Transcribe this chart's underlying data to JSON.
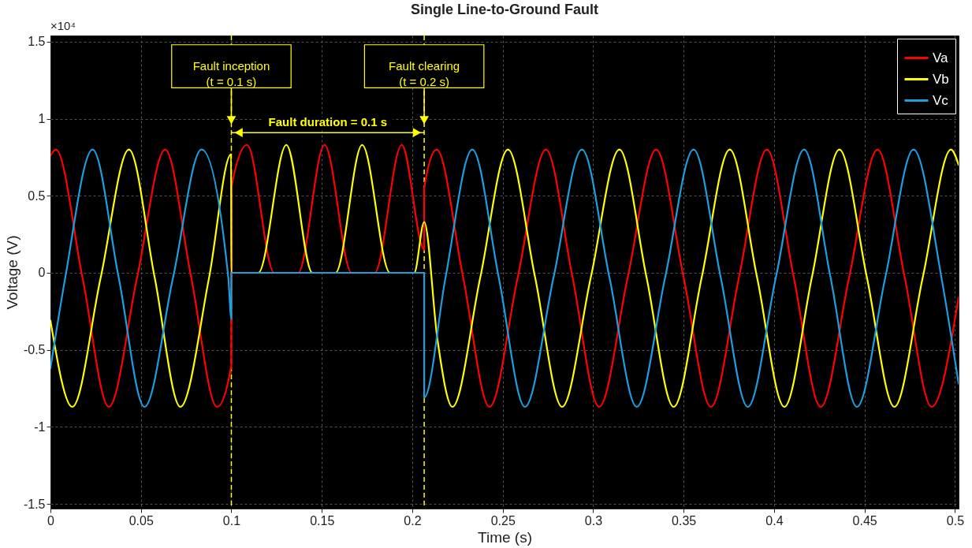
{
  "chart_data": {
    "type": "line",
    "title": "Single Line-to-Ground Fault",
    "xlabel": "Time (s)",
    "ylabel": "Voltage (V)",
    "xlim": [
      0,
      0.502
    ],
    "ylim": [
      -1.53,
      1.54
    ],
    "xticks": [
      0,
      0.05,
      0.1,
      0.15,
      0.2,
      0.25,
      0.3,
      0.35,
      0.4,
      0.45,
      0.5
    ],
    "yticks": [
      -1.5,
      -1,
      -0.5,
      0,
      0.5,
      1,
      1.5
    ],
    "grid": true,
    "legend": "top right",
    "series": [
      {
        "name": "Va",
        "color": "#ff0000",
        "x": [
          0,
          0.003,
          0.0177,
          0.0323,
          0.0479,
          0.0634,
          0.0778,
          0.0921,
          0.1,
          0.1,
          0.1087,
          0.1237,
          0.1369,
          0.1515,
          0.1665,
          0.1792,
          0.1942,
          0.2066,
          0.2066,
          0.2135,
          0.2281,
          0.2427,
          0.2583,
          0.2739,
          0.2886,
          0.3033,
          0.3191,
          0.3348,
          0.35,
          0.3651,
          0.3806,
          0.396,
          0.4109,
          0.4258,
          0.4415,
          0.4572,
          0.4722,
          0.4871,
          0.502
        ],
        "values": [
          0.76,
          0.8,
          -0.03,
          -0.87,
          -0.03,
          0.8,
          -0.03,
          -0.87,
          -0.6,
          0.55,
          0.83,
          0,
          0,
          0.83,
          0,
          0,
          0.83,
          0.15,
          0.55,
          0.8,
          -0.03,
          -0.87,
          -0.03,
          0.8,
          -0.03,
          -0.87,
          -0.03,
          0.8,
          -0.03,
          -0.87,
          -0.03,
          0.8,
          -0.03,
          -0.87,
          -0.03,
          0.8,
          -0.03,
          -0.87,
          -0.16
        ]
      },
      {
        "name": "Vb",
        "color": "#ffff00",
        "x": [
          0,
          0.0121,
          0.0278,
          0.0434,
          0.0576,
          0.0718,
          0.0877,
          0.0999,
          0.1,
          0.1149,
          0.1304,
          0.1448,
          0.1576,
          0.1723,
          0.1877,
          0.2011,
          0.2066,
          0.214,
          0.2222,
          0.2376,
          0.2529,
          0.2679,
          0.2828,
          0.2987,
          0.3145,
          0.3295,
          0.3445,
          0.36,
          0.3755,
          0.3906,
          0.4057,
          0.4209,
          0.4361,
          0.4513,
          0.4665,
          0.4822,
          0.4978,
          0.502
        ],
        "values": [
          -0.31,
          -0.87,
          -0.03,
          0.8,
          -0.03,
          -0.87,
          -0.03,
          0.77,
          0,
          0,
          0.83,
          0,
          0,
          0.83,
          0,
          0,
          0.33,
          -0.44,
          -0.87,
          -0.03,
          0.8,
          -0.03,
          -0.87,
          -0.03,
          0.8,
          -0.03,
          -0.87,
          -0.03,
          0.8,
          -0.03,
          -0.87,
          -0.03,
          0.8,
          -0.03,
          -0.87,
          -0.03,
          0.8,
          0.7
        ]
      },
      {
        "name": "Vc",
        "color": "#1a9fe0",
        "x": [
          0,
          0.0082,
          0.0233,
          0.0377,
          0.052,
          0.0678,
          0.0835,
          0.0983,
          0.1,
          0.1,
          0.2066,
          0.2066,
          0.2184,
          0.2332,
          0.2478,
          0.2623,
          0.2781,
          0.2938,
          0.309,
          0.3241,
          0.3398,
          0.3555,
          0.3705,
          0.3855,
          0.401,
          0.4166,
          0.4312,
          0.4458,
          0.4615,
          0.4771,
          0.4925,
          0.502
        ],
        "values": [
          -0.62,
          -0.03,
          0.8,
          -0.03,
          -0.87,
          -0.03,
          0.8,
          -0.03,
          -0.3,
          0,
          0,
          -0.81,
          -0.03,
          0.8,
          -0.03,
          -0.87,
          -0.03,
          0.8,
          -0.03,
          -0.87,
          -0.03,
          0.8,
          -0.03,
          -0.87,
          -0.03,
          0.8,
          -0.03,
          -0.87,
          -0.03,
          0.8,
          -0.03,
          -0.72
        ]
      }
    ],
    "ref_lines": [
      {
        "axis": "x",
        "value": 0.1,
        "color": "#ffff00",
        "line_style": "dashed"
      },
      {
        "axis": "x",
        "value": 0.2066,
        "color": "#ffff00",
        "line_style": "dashed"
      }
    ],
    "annotations": [
      "×10⁴",
      "Fault inception\n(t = 0.1 s)",
      "Fault clearing\n(t = 0.2 s)",
      "Fault duration = 0.1 s"
    ]
  }
}
